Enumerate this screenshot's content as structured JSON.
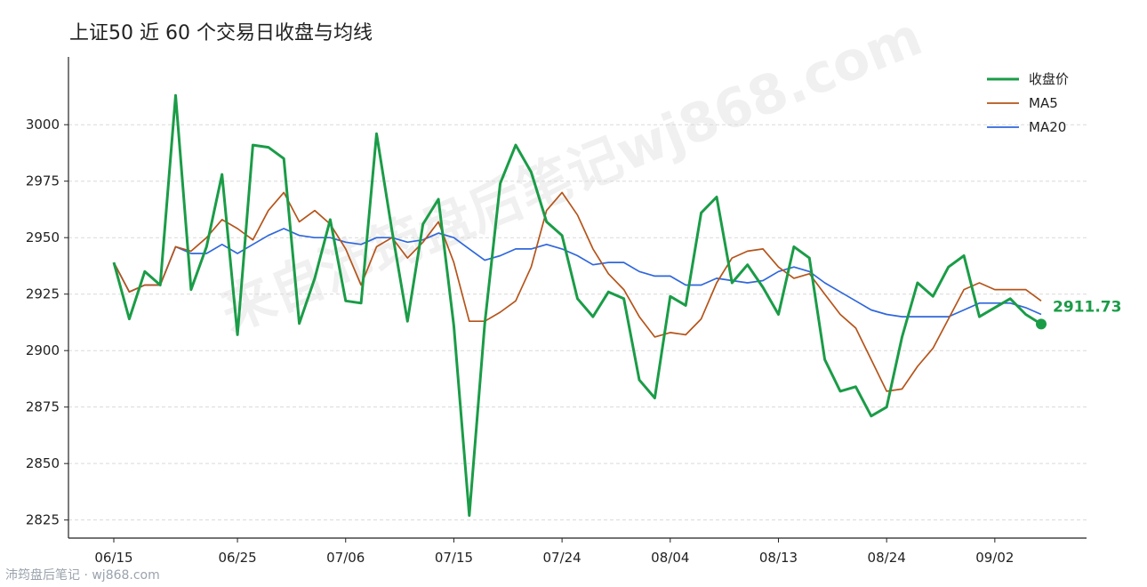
{
  "watermark": "来自沛筠盘后笔记wj868.com",
  "footer": "沛筠盘后笔记 · wj868.com",
  "end_label": "2911.73",
  "colors": {
    "close": "#1a9c47",
    "ma5": "#b5541a",
    "ma20": "#2f67dc"
  },
  "chart_data": {
    "type": "line",
    "title": "上证50 近 60 个交易日收盘与均线",
    "xlabel": "",
    "ylabel": "",
    "ylim": [
      2817,
      3030
    ],
    "yticks": [
      2825,
      2850,
      2875,
      2900,
      2925,
      2950,
      2975,
      3000
    ],
    "grid": "horizontal",
    "legend_position": "top-right",
    "x": [
      "06/15",
      "06/16",
      "06/17",
      "06/18",
      "06/19",
      "06/22",
      "06/23",
      "06/24",
      "06/25",
      "06/26",
      "06/29",
      "06/30",
      "07/01",
      "07/02",
      "07/03",
      "07/06",
      "07/07",
      "07/08",
      "07/09",
      "07/10",
      "07/13",
      "07/14",
      "07/15",
      "07/16",
      "07/17",
      "07/20",
      "07/21",
      "07/22",
      "07/23",
      "07/24",
      "07/27",
      "07/28",
      "07/29",
      "07/30",
      "07/31",
      "08/03",
      "08/04",
      "08/05",
      "08/06",
      "08/07",
      "08/10",
      "08/11",
      "08/12",
      "08/13",
      "08/14",
      "08/17",
      "08/18",
      "08/19",
      "08/20",
      "08/21",
      "08/24",
      "08/25",
      "08/26",
      "08/27",
      "08/28",
      "08/31",
      "09/01",
      "09/02",
      "09/03",
      "09/04",
      "09/07"
    ],
    "x_ticks": [
      "06/15",
      "06/25",
      "07/06",
      "07/15",
      "07/24",
      "08/04",
      "08/13",
      "08/24",
      "09/02"
    ],
    "series": [
      {
        "name": "收盘价",
        "values": [
          2939,
          2914,
          2935,
          2929,
          3013,
          2927,
          2946,
          2978,
          2907,
          2991,
          2990,
          2985,
          2912,
          2932,
          2958,
          2922,
          2921,
          2996,
          2953,
          2913,
          2956,
          2967,
          2911,
          2827,
          2912,
          2974,
          2991,
          2979,
          2957,
          2951,
          2923,
          2915,
          2926,
          2923,
          2887,
          2879,
          2924,
          2920,
          2961,
          2968,
          2930,
          2938,
          2928,
          2916,
          2946,
          2941,
          2896,
          2882,
          2884,
          2871,
          2875,
          2906,
          2930,
          2924,
          2937,
          2942,
          2915,
          2919,
          2923,
          2916,
          2911.73
        ]
      },
      {
        "name": "MA5",
        "values": [
          2939,
          2926,
          2929,
          2929,
          2946,
          2944,
          2950,
          2958,
          2954,
          2949,
          2962,
          2970,
          2957,
          2962,
          2956,
          2945,
          2929,
          2946,
          2950,
          2941,
          2948,
          2957,
          2939,
          2913,
          2913,
          2917,
          2922,
          2937,
          2962,
          2970,
          2960,
          2945,
          2934,
          2927,
          2915,
          2906,
          2908,
          2907,
          2914,
          2930,
          2941,
          2944,
          2945,
          2937,
          2932,
          2934,
          2925,
          2916,
          2910,
          2896,
          2882,
          2883,
          2893,
          2901,
          2914,
          2927,
          2930,
          2927,
          2927,
          2927,
          2922
        ]
      },
      {
        "name": "MA20",
        "values": [
          2939,
          2926,
          2929,
          2929,
          2946,
          2943,
          2943,
          2947,
          2943,
          2947,
          2951,
          2954,
          2951,
          2950,
          2950,
          2948,
          2947,
          2950,
          2950,
          2948,
          2949,
          2952,
          2950,
          2945,
          2940,
          2942,
          2945,
          2945,
          2947,
          2945,
          2942,
          2938,
          2939,
          2939,
          2935,
          2933,
          2933,
          2929,
          2929,
          2932,
          2931,
          2930,
          2931,
          2935,
          2937,
          2935,
          2930,
          2926,
          2922,
          2918,
          2916,
          2915,
          2915,
          2915,
          2915,
          2918,
          2921,
          2921,
          2921,
          2919,
          2916
        ]
      }
    ]
  }
}
